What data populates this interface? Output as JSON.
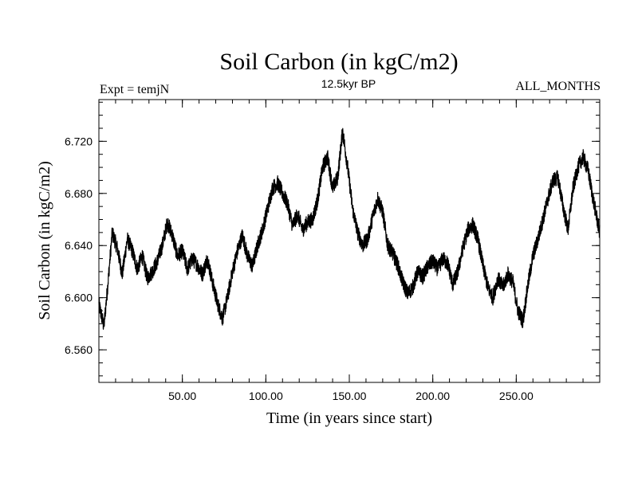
{
  "chart_data": {
    "type": "line",
    "title": "Soil Carbon (in kgC/m2)",
    "subtitle": "12.5kyr BP",
    "header_left": "Expt = temjN",
    "header_right": "ALL_MONTHS",
    "xlabel": "Time (in years since start)",
    "ylabel": "Soil Carbon (in kgC/m2)",
    "xlim": [
      0,
      300
    ],
    "ylim": [
      6.535,
      6.752
    ],
    "x_ticks": [
      50,
      100,
      150,
      200,
      250
    ],
    "x_tick_labels": [
      "50.00",
      "100.00",
      "150.00",
      "200.00",
      "250.00"
    ],
    "y_ticks": [
      6.56,
      6.6,
      6.64,
      6.68,
      6.72
    ],
    "y_tick_labels": [
      "6.560",
      "6.600",
      "6.640",
      "6.680",
      "6.720"
    ],
    "grid": false,
    "line_color": "#000000",
    "series": [
      {
        "name": "Soil Carbon",
        "x": [
          0,
          3,
          5,
          8,
          11,
          14,
          17,
          20,
          23,
          26,
          29,
          32,
          35,
          38,
          41,
          44,
          47,
          50,
          53,
          56,
          59,
          62,
          65,
          68,
          71,
          74,
          77,
          80,
          83,
          86,
          89,
          92,
          95,
          98,
          101,
          104,
          107,
          110,
          113,
          116,
          119,
          122,
          125,
          128,
          131,
          134,
          137,
          140,
          143,
          146,
          149,
          152,
          155,
          158,
          161,
          164,
          167,
          170,
          173,
          176,
          179,
          182,
          185,
          188,
          191,
          194,
          197,
          200,
          203,
          206,
          209,
          212,
          215,
          218,
          221,
          224,
          227,
          230,
          233,
          236,
          239,
          242,
          245,
          248,
          251,
          254,
          257,
          260,
          263,
          266,
          269,
          272,
          275,
          278,
          281,
          284,
          287,
          290,
          293,
          296,
          300
        ],
        "y": [
          6.595,
          6.578,
          6.605,
          6.65,
          6.638,
          6.618,
          6.645,
          6.636,
          6.622,
          6.632,
          6.615,
          6.62,
          6.628,
          6.64,
          6.658,
          6.648,
          6.632,
          6.636,
          6.622,
          6.63,
          6.625,
          6.618,
          6.63,
          6.612,
          6.596,
          6.584,
          6.6,
          6.62,
          6.636,
          6.648,
          6.632,
          6.624,
          6.64,
          6.652,
          6.668,
          6.684,
          6.688,
          6.68,
          6.672,
          6.655,
          6.664,
          6.652,
          6.658,
          6.66,
          6.675,
          6.7,
          6.708,
          6.684,
          6.692,
          6.728,
          6.7,
          6.668,
          6.65,
          6.64,
          6.645,
          6.662,
          6.676,
          6.666,
          6.64,
          6.634,
          6.625,
          6.612,
          6.603,
          6.608,
          6.62,
          6.616,
          6.624,
          6.628,
          6.622,
          6.63,
          6.626,
          6.61,
          6.62,
          6.638,
          6.652,
          6.656,
          6.645,
          6.625,
          6.608,
          6.6,
          6.615,
          6.608,
          6.618,
          6.612,
          6.59,
          6.582,
          6.61,
          6.632,
          6.645,
          6.66,
          6.676,
          6.69,
          6.692,
          6.67,
          6.652,
          6.684,
          6.7,
          6.708,
          6.698,
          6.676,
          6.65
        ]
      }
    ]
  }
}
